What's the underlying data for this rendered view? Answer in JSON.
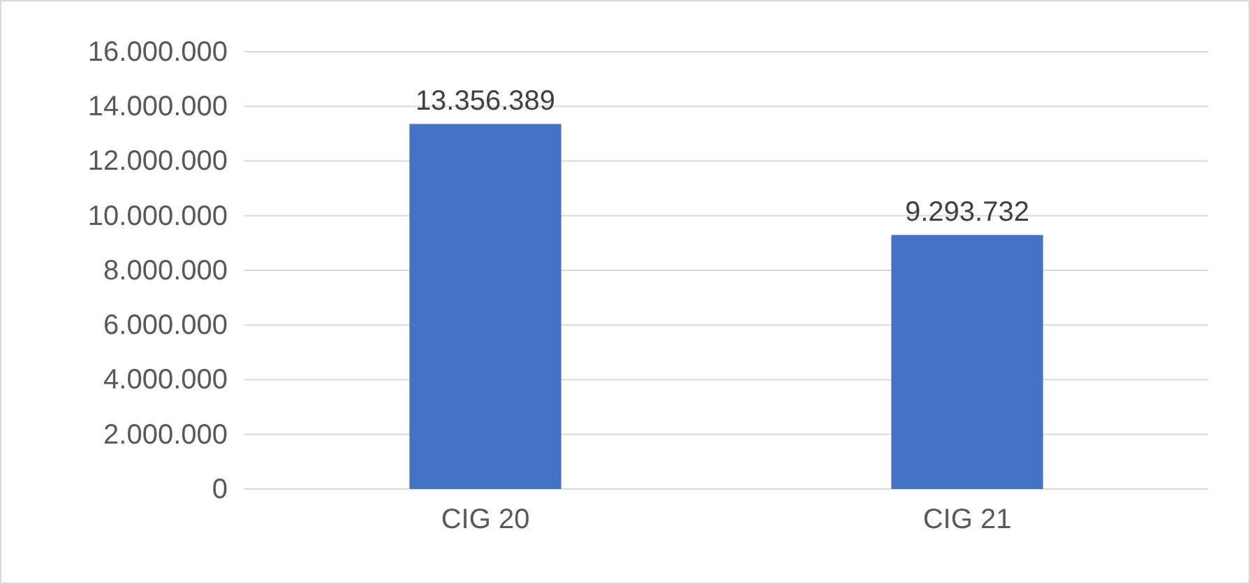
{
  "chart_data": {
    "type": "bar",
    "categories": [
      "CIG 20",
      "CIG 21"
    ],
    "values": [
      13356389,
      9293732
    ],
    "color": "#4472c4",
    "value_labels": [
      "13.356.389",
      "9.293.732"
    ],
    "ylim": [
      0,
      16000000
    ],
    "yticks": [
      {
        "value": 0,
        "label": "0"
      },
      {
        "value": 2000000,
        "label": "2.000.000"
      },
      {
        "value": 4000000,
        "label": "4.000.000"
      },
      {
        "value": 6000000,
        "label": "6.000.000"
      },
      {
        "value": 8000000,
        "label": "8.000.000"
      },
      {
        "value": 10000000,
        "label": "10.000.000"
      },
      {
        "value": 12000000,
        "label": "12.000.000"
      },
      {
        "value": 14000000,
        "label": "14.000.000"
      },
      {
        "value": 16000000,
        "label": "16.000.000"
      }
    ],
    "grid": "y"
  }
}
